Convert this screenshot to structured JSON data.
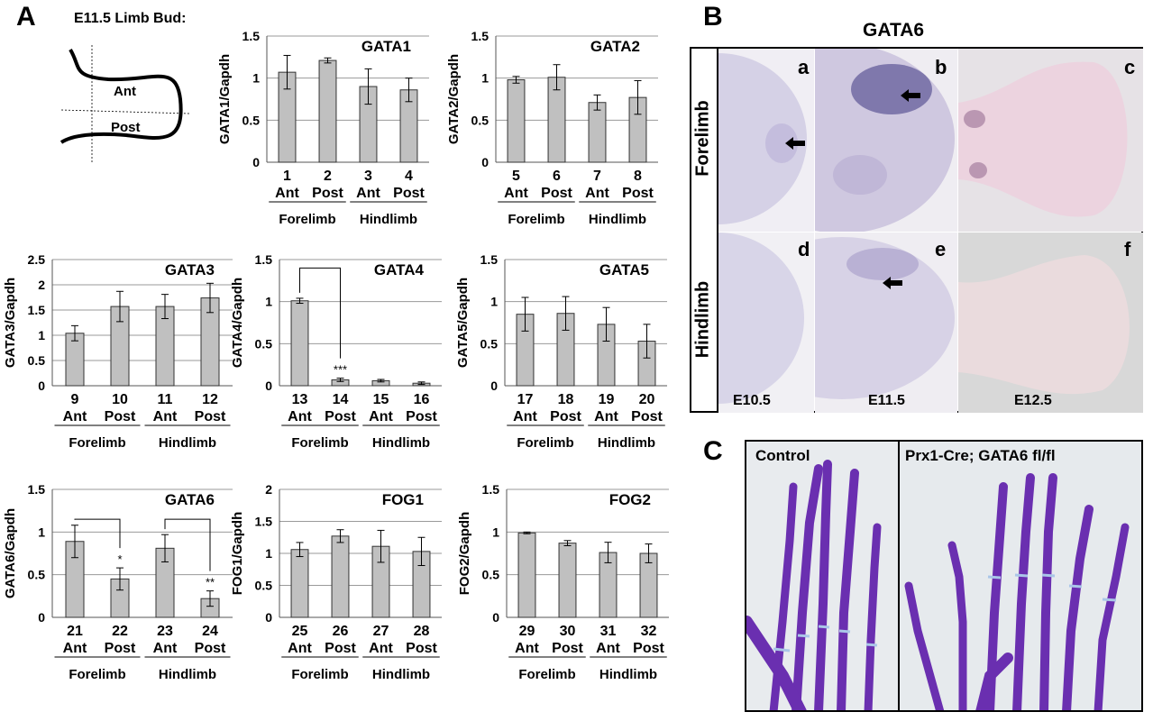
{
  "panel_letters": {
    "a": "A",
    "b": "B",
    "c": "C"
  },
  "schematic": {
    "title": "E11.5 Limb Bud:",
    "ant": "Ant",
    "post": "Post"
  },
  "chart_data": [
    {
      "type": "bar",
      "title": "GATA1",
      "ylabel": "GATA1/Gapdh",
      "ylim": [
        0,
        1.5
      ],
      "yticks": [
        "0",
        "0.5",
        "1",
        "1.5"
      ],
      "categories": [
        "1",
        "2",
        "3",
        "4"
      ],
      "values": [
        1.07,
        1.21,
        0.9,
        0.86
      ],
      "errors": [
        0.2,
        0.03,
        0.21,
        0.14
      ],
      "groups": [
        "Ant",
        "Post",
        "Ant",
        "Post"
      ],
      "limbs": [
        "Forelimb",
        "Hindlimb"
      ],
      "annotations": []
    },
    {
      "type": "bar",
      "title": "GATA2",
      "ylabel": "GATA2/Gapdh",
      "ylim": [
        0,
        1.5
      ],
      "yticks": [
        "0",
        "0.5",
        "1",
        "1.5"
      ],
      "categories": [
        "5",
        "6",
        "7",
        "8"
      ],
      "values": [
        0.98,
        1.01,
        0.71,
        0.77
      ],
      "errors": [
        0.04,
        0.15,
        0.09,
        0.2
      ],
      "groups": [
        "Ant",
        "Post",
        "Ant",
        "Post"
      ],
      "limbs": [
        "Forelimb",
        "Hindlimb"
      ],
      "annotations": []
    },
    {
      "type": "bar",
      "title": "GATA3",
      "ylabel": "GATA3/Gapdh",
      "ylim": [
        0,
        2.5
      ],
      "yticks": [
        "0",
        "0.5",
        "1",
        "1.5",
        "2",
        "2.5"
      ],
      "categories": [
        "9",
        "10",
        "11",
        "12"
      ],
      "values": [
        1.04,
        1.57,
        1.57,
        1.74
      ],
      "errors": [
        0.15,
        0.3,
        0.24,
        0.29
      ],
      "groups": [
        "Ant",
        "Post",
        "Ant",
        "Post"
      ],
      "limbs": [
        "Forelimb",
        "Hindlimb"
      ],
      "annotations": []
    },
    {
      "type": "bar",
      "title": "GATA4",
      "ylabel": "GATA4/Gapdh",
      "ylim": [
        0,
        1.5
      ],
      "yticks": [
        "0",
        "0.5",
        "1",
        "1.5"
      ],
      "categories": [
        "13",
        "14",
        "15",
        "16"
      ],
      "values": [
        1.01,
        0.07,
        0.06,
        0.03
      ],
      "errors": [
        0.03,
        0.02,
        0.015,
        0.015
      ],
      "groups": [
        "Ant",
        "Post",
        "Ant",
        "Post"
      ],
      "limbs": [
        "Forelimb",
        "Hindlimb"
      ],
      "annotations": [
        {
          "bar": 1,
          "text": "***"
        }
      ],
      "brackets": [
        [
          0,
          1,
          1.4
        ]
      ]
    },
    {
      "type": "bar",
      "title": "GATA5",
      "ylabel": "GATA5/Gapdh",
      "ylim": [
        0,
        1.5
      ],
      "yticks": [
        "0",
        "0.5",
        "1",
        "1.5"
      ],
      "categories": [
        "17",
        "18",
        "19",
        "20"
      ],
      "values": [
        0.85,
        0.86,
        0.73,
        0.53
      ],
      "errors": [
        0.2,
        0.2,
        0.2,
        0.2
      ],
      "groups": [
        "Ant",
        "Post",
        "Ant",
        "Post"
      ],
      "limbs": [
        "Forelimb",
        "Hindlimb"
      ],
      "annotations": []
    },
    {
      "type": "bar",
      "title": "GATA6",
      "ylabel": "GATA6/Gapdh",
      "ylim": [
        0,
        1.5
      ],
      "yticks": [
        "0",
        "0.5",
        "1",
        "1.5"
      ],
      "categories": [
        "21",
        "22",
        "23",
        "24"
      ],
      "values": [
        0.89,
        0.45,
        0.81,
        0.22
      ],
      "errors": [
        0.19,
        0.13,
        0.16,
        0.09
      ],
      "groups": [
        "Ant",
        "Post",
        "Ant",
        "Post"
      ],
      "limbs": [
        "Forelimb",
        "Hindlimb"
      ],
      "annotations": [
        {
          "bar": 1,
          "text": "*"
        },
        {
          "bar": 3,
          "text": "**"
        }
      ],
      "brackets": [
        [
          0,
          1,
          1.15
        ],
        [
          2,
          3,
          1.15
        ]
      ]
    },
    {
      "type": "bar",
      "title": "FOG1",
      "ylabel": "FOG1/Gapdh",
      "ylim": [
        0,
        2
      ],
      "yticks": [
        "0",
        "0.5",
        "1",
        "1.5",
        "2"
      ],
      "categories": [
        "25",
        "26",
        "27",
        "28"
      ],
      "values": [
        1.06,
        1.27,
        1.11,
        1.03
      ],
      "errors": [
        0.11,
        0.1,
        0.25,
        0.22
      ],
      "groups": [
        "Ant",
        "Post",
        "Ant",
        "Post"
      ],
      "limbs": [
        "Forelimb",
        "Hindlimb"
      ],
      "annotations": []
    },
    {
      "type": "bar",
      "title": "FOG2",
      "ylabel": "FOG2/Gapdh",
      "ylim": [
        0,
        1.5
      ],
      "yticks": [
        "0",
        "0.5",
        "1",
        "1.5"
      ],
      "categories": [
        "29",
        "30",
        "31",
        "32"
      ],
      "values": [
        0.99,
        0.87,
        0.76,
        0.75
      ],
      "errors": [
        0.01,
        0.03,
        0.12,
        0.11
      ],
      "groups": [
        "Ant",
        "Post",
        "Ant",
        "Post"
      ],
      "limbs": [
        "Forelimb",
        "Hindlimb"
      ],
      "annotations": []
    }
  ],
  "panel_b": {
    "title": "GATA6",
    "rows": [
      "Forelimb",
      "Hindlimb"
    ],
    "letters": [
      "a",
      "b",
      "c",
      "d",
      "e",
      "f"
    ],
    "stages": [
      "E10.5",
      "E11.5",
      "E12.5"
    ]
  },
  "panel_c": {
    "control": "Control",
    "mutant": "Prx1-Cre; GATA6 fl/fl"
  },
  "colors": {
    "bar": "#c0c0c0",
    "grid": "#9a9a9a",
    "stain": "#6a2fb0"
  }
}
